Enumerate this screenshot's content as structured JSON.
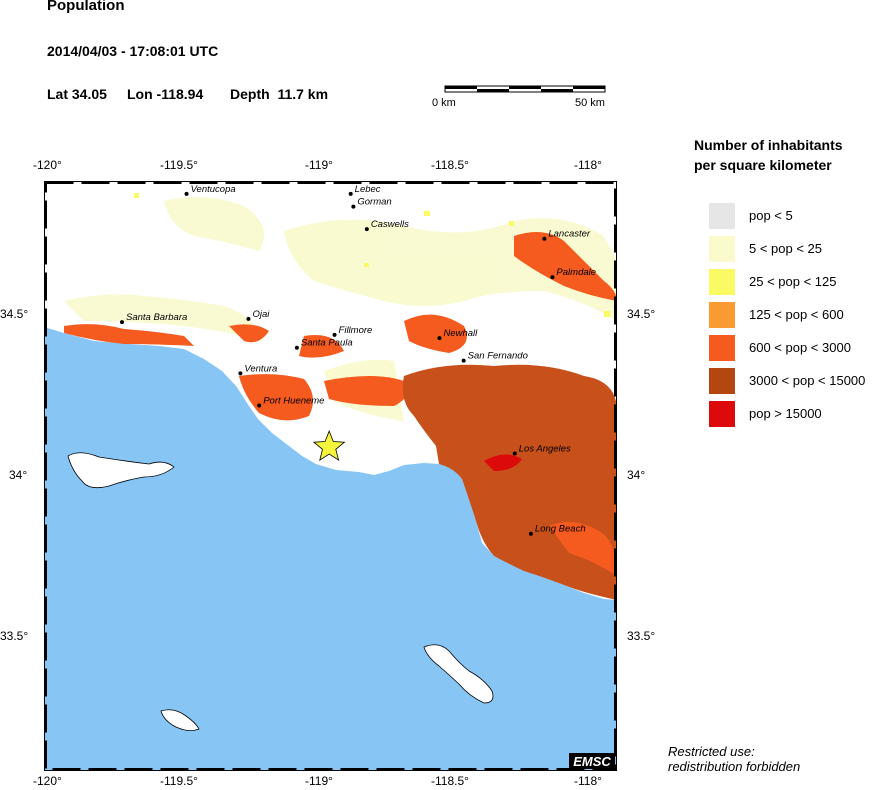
{
  "header": {
    "title": "Population",
    "datetime": "2014/04/03 - 17:08:01 UTC",
    "lat": "Lat 34.05",
    "lon": "Lon -118.94",
    "depth": "Depth  11.7 km"
  },
  "scale_bar": {
    "start_label": "0 km",
    "end_label": "50 km"
  },
  "axis": {
    "top_ticks": [
      "-120°",
      "-119.5°",
      "-119°",
      "-118.5°",
      "-118°"
    ],
    "bottom_ticks": [
      "-120°",
      "-119.5°",
      "-119°",
      "-118.5°",
      "-118°"
    ],
    "left_ticks": [
      "34.5°",
      "34°",
      "33.5°"
    ],
    "right_ticks": [
      "34.5°",
      "34°",
      "33.5°"
    ]
  },
  "epicenter": {
    "lat": 34.05,
    "lon": -118.94
  },
  "cities": [
    {
      "name": "Ventucopa",
      "lat": 34.84,
      "lon": -119.47
    },
    {
      "name": "Lebec",
      "lat": 34.84,
      "lon": -118.86
    },
    {
      "name": "Gorman",
      "lat": 34.8,
      "lon": -118.85
    },
    {
      "name": "Caswells",
      "lat": 34.73,
      "lon": -118.8
    },
    {
      "name": "Lancaster",
      "lat": 34.7,
      "lon": -118.14
    },
    {
      "name": "Palmdale",
      "lat": 34.58,
      "lon": -118.11
    },
    {
      "name": "Santa Barbara",
      "lat": 34.44,
      "lon": -119.71
    },
    {
      "name": "Ojai",
      "lat": 34.45,
      "lon": -119.24
    },
    {
      "name": "Fillmore",
      "lat": 34.4,
      "lon": -118.92
    },
    {
      "name": "Santa Paula",
      "lat": 34.36,
      "lon": -119.06
    },
    {
      "name": "Newhall",
      "lat": 34.39,
      "lon": -118.53
    },
    {
      "name": "San Fernando",
      "lat": 34.32,
      "lon": -118.44
    },
    {
      "name": "Ventura",
      "lat": 34.28,
      "lon": -119.27
    },
    {
      "name": "Port Hueneme",
      "lat": 34.18,
      "lon": -119.2
    },
    {
      "name": "Los Angeles",
      "lat": 34.03,
      "lon": -118.25
    },
    {
      "name": "Long Beach",
      "lat": 33.78,
      "lon": -118.19
    }
  ],
  "legend": {
    "title_line1": "Number of inhabitants",
    "title_line2": "per square kilometer",
    "items": [
      {
        "label": "pop < 5",
        "color": "#e6e6e6"
      },
      {
        "label": "5 < pop < 25",
        "color": "#fafacd"
      },
      {
        "label": "25 < pop < 125",
        "color": "#fafa64"
      },
      {
        "label": "125 < pop < 600",
        "color": "#fa9b32"
      },
      {
        "label": "600 < pop < 3000",
        "color": "#f55a1e"
      },
      {
        "label": "3000 < pop < 15000",
        "color": "#b4460f"
      },
      {
        "label": "pop > 15000",
        "color": "#dc0a0a"
      }
    ]
  },
  "colors": {
    "ocean": "#87c5f5",
    "land": "#ffffff",
    "star": "#f5f53c"
  },
  "logo": "EMSC",
  "restricted_line1": "Restricted use:",
  "restricted_line2": "redistribution forbidden"
}
